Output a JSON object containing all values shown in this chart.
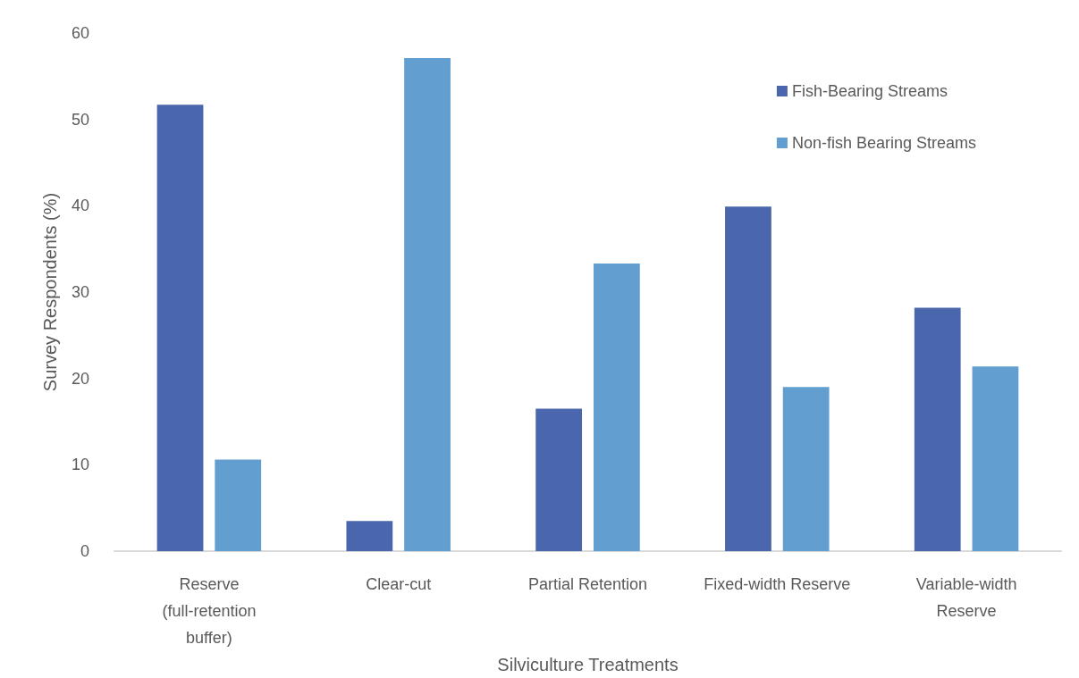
{
  "chart_data": {
    "type": "bar",
    "xlabel": "Silviculture Treatments",
    "ylabel": "Survey Respondents (%)",
    "categories": [
      "Reserve (full-retention buffer)",
      "Clear-cut",
      "Partial Retention",
      "Fixed-width Reserve",
      "Variable-width Reserve"
    ],
    "series": [
      {
        "name": "Fish-Bearing Streams",
        "color": "#4a66ac",
        "values": [
          51.7,
          3.5,
          16.5,
          39.9,
          28.2
        ]
      },
      {
        "name": "Non-fish Bearing Streams",
        "color": "#629fd0",
        "values": [
          10.6,
          57.1,
          33.3,
          19.0,
          21.4
        ]
      }
    ],
    "ylim": [
      0,
      60
    ],
    "yticks": [
      0,
      10,
      20,
      30,
      40,
      50,
      60
    ],
    "grid": false,
    "legend": "top right"
  }
}
